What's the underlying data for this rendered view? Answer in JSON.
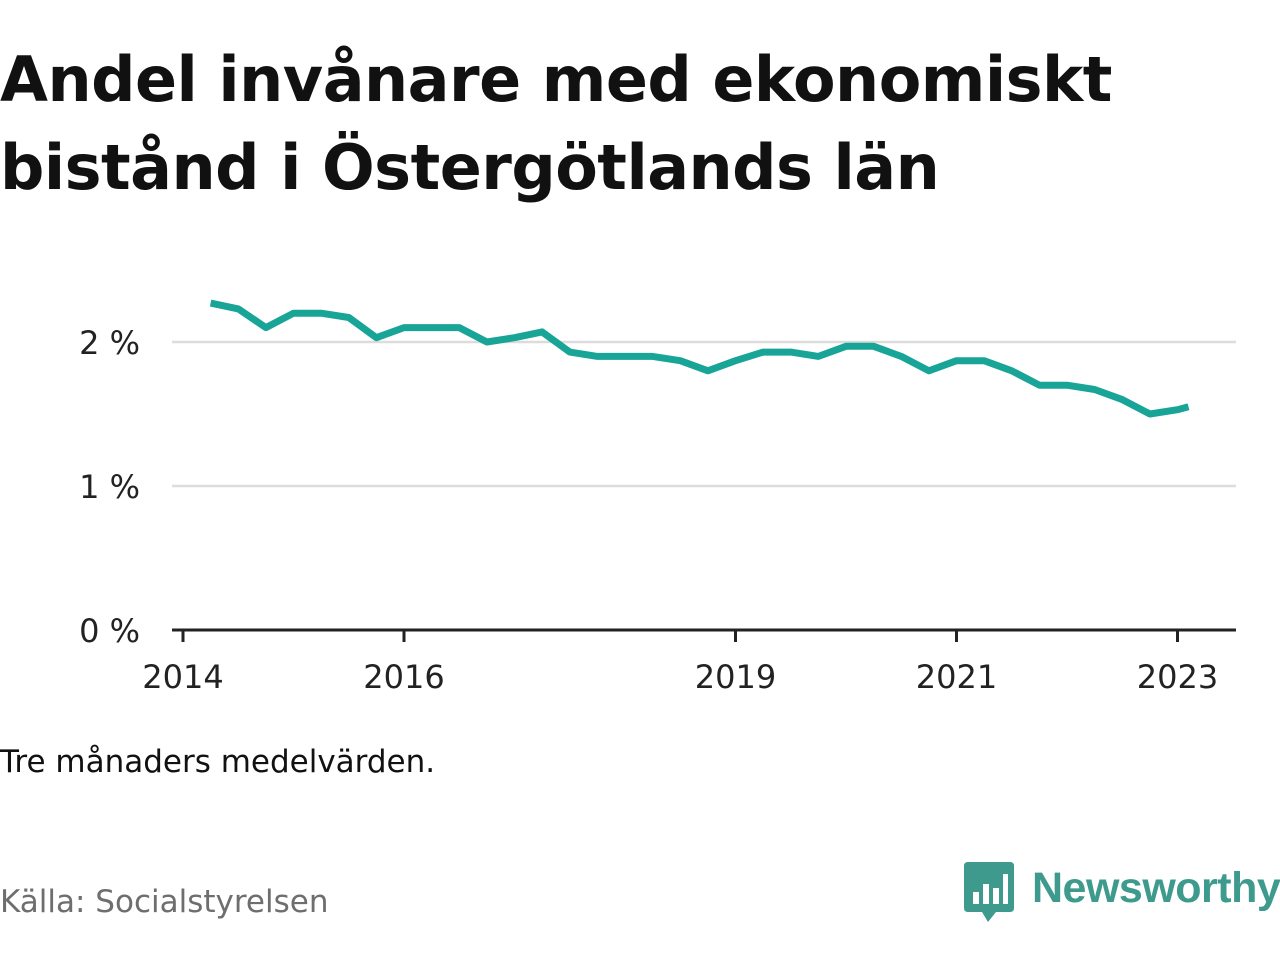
{
  "title": "Andel invånare med ekonomiskt bistånd i Östergötlands län",
  "note": "Tre månaders medelvärden.",
  "source": "Källa: Socialstyrelsen",
  "logo": {
    "text": "Newsworthy",
    "icon": "bar-chart-speech-bubble-icon",
    "color": "#3d9a8d"
  },
  "chart_data": {
    "type": "line",
    "line_color": "#18a597",
    "grid": true,
    "ylim": [
      0,
      2.5
    ],
    "y_ticks": [
      0,
      1,
      2
    ],
    "y_tick_labels": [
      "0 %",
      "1 %",
      "2 %"
    ],
    "x_ticks": [
      2014,
      2016,
      2019,
      2021,
      2023
    ],
    "x_tick_labels": [
      "2014",
      "2016",
      "2019",
      "2021",
      "2023"
    ],
    "series": [
      {
        "x": [
          2014.25,
          2014.5,
          2014.75,
          2015.0,
          2015.25,
          2015.5,
          2015.75,
          2016.0,
          2016.25,
          2016.5,
          2016.75,
          2017.0,
          2017.25,
          2017.5,
          2017.75,
          2018.0,
          2018.25,
          2018.5,
          2018.75,
          2019.0,
          2019.25,
          2019.5,
          2019.75,
          2020.0,
          2020.25,
          2020.5,
          2020.75,
          2021.0,
          2021.25,
          2021.5,
          2021.75,
          2022.0,
          2022.25,
          2022.5,
          2022.75,
          2023.0,
          2023.1
        ],
        "y": [
          2.27,
          2.23,
          2.1,
          2.2,
          2.2,
          2.17,
          2.03,
          2.1,
          2.1,
          2.1,
          2.0,
          2.03,
          2.07,
          1.93,
          1.9,
          1.9,
          1.9,
          1.87,
          1.8,
          1.87,
          1.93,
          1.93,
          1.9,
          1.97,
          1.97,
          1.9,
          1.8,
          1.87,
          1.87,
          1.8,
          1.7,
          1.7,
          1.67,
          1.6,
          1.5,
          1.53,
          1.55
        ]
      }
    ]
  }
}
